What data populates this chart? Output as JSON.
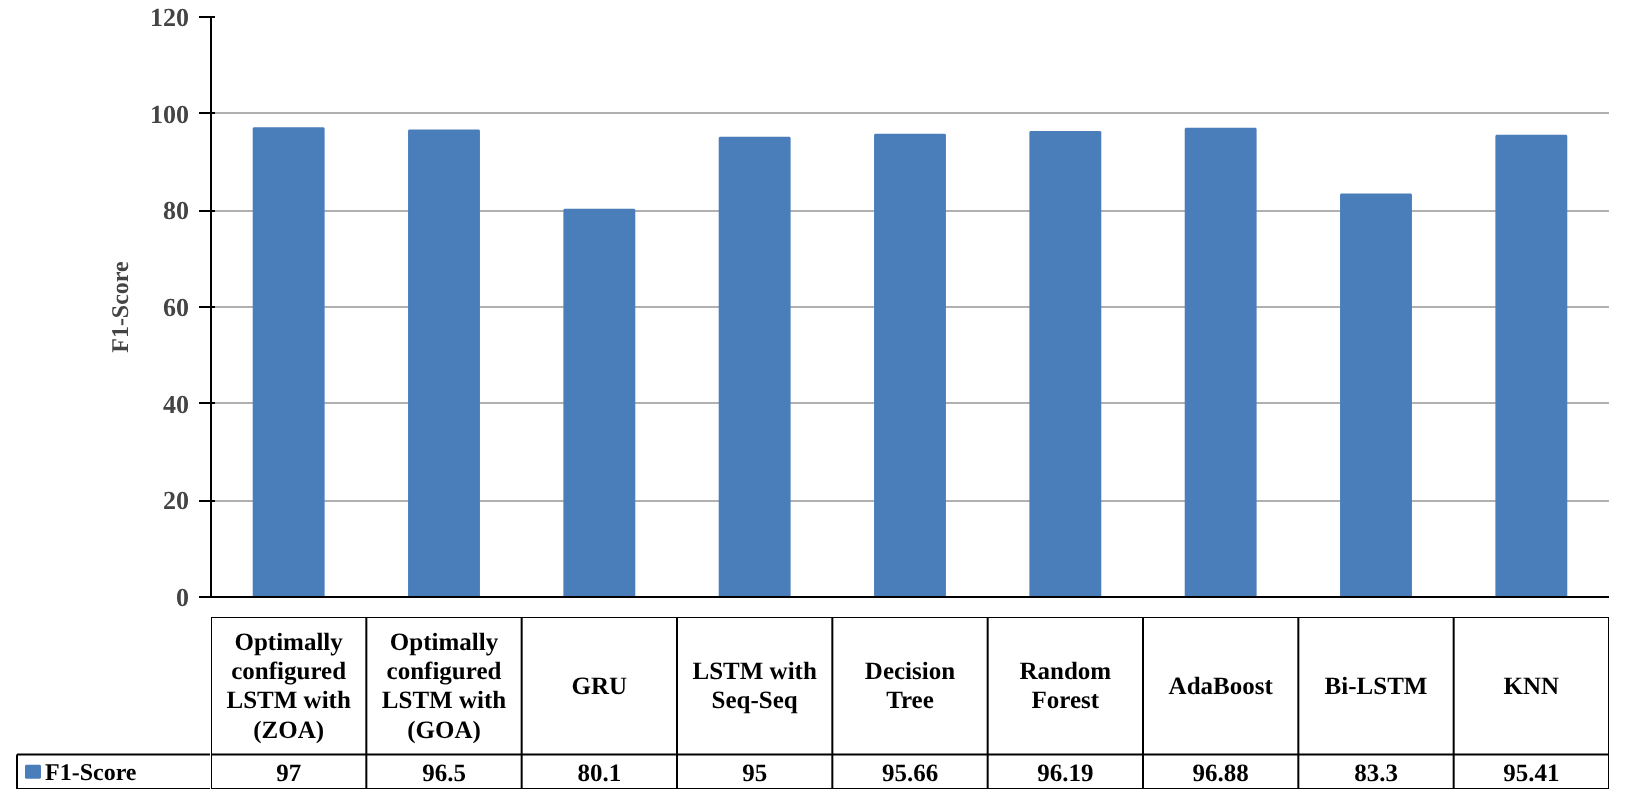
{
  "chart_data": {
    "type": "bar",
    "ylabel": "F1-Score",
    "categories": [
      "Optimally configured LSTM with (ZOA)",
      "Optimally configured LSTM with (GOA)",
      "GRU",
      "LSTM with Seq-Seq",
      "Decision Tree",
      "Random Forest",
      "AdaBoost",
      "Bi-LSTM",
      "KNN"
    ],
    "series": [
      {
        "name": "F1-Score",
        "color": "#4a7ebb",
        "values": [
          97,
          96.5,
          80.1,
          95,
          95.66,
          96.19,
          96.88,
          83.3,
          95.41
        ]
      }
    ],
    "ylim": [
      0,
      120
    ],
    "yticks": [
      0,
      20,
      40,
      60,
      80,
      100,
      120
    ],
    "grid": "y",
    "data_labels": true,
    "legend": "bottom"
  }
}
